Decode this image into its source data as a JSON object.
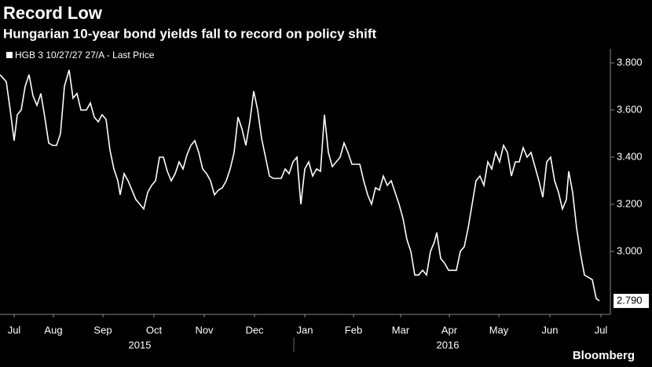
{
  "chart_data": {
    "type": "line",
    "title": "Record Low",
    "subtitle": "Hungarian 10-year bond yields fall to record on policy shift",
    "source": "Bloomberg",
    "legend": "top-left",
    "grid": false,
    "xlim": [
      0,
      777
    ],
    "xticks": [
      {
        "value": 18,
        "label": "Jul"
      },
      {
        "value": 68,
        "label": "Aug"
      },
      {
        "value": 131,
        "label": "Sep"
      },
      {
        "value": 196,
        "label": "Oct"
      },
      {
        "value": 260,
        "label": "Nov"
      },
      {
        "value": 324,
        "label": "Dec"
      },
      {
        "value": 388,
        "label": "Jan"
      },
      {
        "value": 450,
        "label": "Feb"
      },
      {
        "value": 510,
        "label": "Mar"
      },
      {
        "value": 572,
        "label": "Apr"
      },
      {
        "value": 635,
        "label": "May"
      },
      {
        "value": 700,
        "label": "Jun"
      },
      {
        "value": 765,
        "label": "Jul"
      }
    ],
    "years": [
      {
        "value": 178,
        "label": "2015"
      },
      {
        "value": 570,
        "label": "2016"
      }
    ],
    "ylim": [
      2.733,
      3.86
    ],
    "yticks": [
      {
        "value": 3.0,
        "label": "3.000"
      },
      {
        "value": 3.2,
        "label": "3.200"
      },
      {
        "value": 3.4,
        "label": "3.400"
      },
      {
        "value": 3.6,
        "label": "3.600"
      },
      {
        "value": 3.8,
        "label": "3.800"
      }
    ],
    "last_value": {
      "value": 2.79,
      "label": "2.790"
    },
    "x": [
      0,
      8,
      13,
      18,
      22,
      27,
      32,
      37,
      42,
      47,
      52,
      57,
      62,
      67,
      72,
      77,
      82,
      88,
      93,
      98,
      103,
      110,
      115,
      120,
      125,
      130,
      135,
      140,
      145,
      150,
      153,
      158,
      163,
      168,
      173,
      178,
      183,
      188,
      193,
      198,
      203,
      208,
      213,
      218,
      223,
      228,
      233,
      238,
      243,
      248,
      253,
      258,
      263,
      268,
      273,
      278,
      283,
      288,
      293,
      298,
      303,
      308,
      313,
      318,
      323,
      328,
      333,
      338,
      343,
      348,
      353,
      358,
      363,
      368,
      373,
      378,
      383,
      388,
      393,
      398,
      403,
      408,
      413,
      418,
      423,
      428,
      433,
      438,
      443,
      448,
      453,
      458,
      463,
      468,
      473,
      478,
      483,
      488,
      493,
      498,
      503,
      508,
      513,
      518,
      523,
      528,
      533,
      538,
      543,
      548,
      553,
      556,
      561,
      566,
      571,
      576,
      581,
      586,
      591,
      596,
      601,
      606,
      611,
      616,
      621,
      626,
      631,
      636,
      641,
      646,
      651,
      656,
      661,
      666,
      671,
      676,
      681,
      686,
      691,
      696,
      701,
      706,
      711,
      716,
      721,
      724,
      729,
      734,
      739,
      744,
      749,
      754,
      759,
      763
    ],
    "series": [
      {
        "name": "HGB 3 10/27/27 27/A - Last Price",
        "color": "#ffffff",
        "values": [
          3.75,
          3.72,
          3.6,
          3.47,
          3.58,
          3.6,
          3.7,
          3.75,
          3.66,
          3.62,
          3.67,
          3.57,
          3.46,
          3.45,
          3.45,
          3.5,
          3.7,
          3.77,
          3.65,
          3.67,
          3.6,
          3.6,
          3.63,
          3.57,
          3.55,
          3.58,
          3.56,
          3.43,
          3.35,
          3.3,
          3.24,
          3.33,
          3.3,
          3.26,
          3.22,
          3.2,
          3.18,
          3.25,
          3.28,
          3.3,
          3.4,
          3.4,
          3.34,
          3.3,
          3.33,
          3.38,
          3.35,
          3.41,
          3.45,
          3.47,
          3.42,
          3.35,
          3.33,
          3.3,
          3.24,
          3.26,
          3.27,
          3.3,
          3.35,
          3.42,
          3.57,
          3.52,
          3.45,
          3.55,
          3.68,
          3.6,
          3.48,
          3.4,
          3.32,
          3.31,
          3.31,
          3.31,
          3.35,
          3.33,
          3.38,
          3.4,
          3.2,
          3.35,
          3.38,
          3.32,
          3.35,
          3.34,
          3.58,
          3.42,
          3.36,
          3.38,
          3.4,
          3.46,
          3.42,
          3.37,
          3.37,
          3.37,
          3.3,
          3.24,
          3.2,
          3.27,
          3.26,
          3.32,
          3.28,
          3.3,
          3.25,
          3.2,
          3.14,
          3.05,
          3.0,
          2.9,
          2.9,
          2.92,
          2.9,
          3.0,
          3.04,
          3.08,
          2.97,
          2.95,
          2.92,
          2.92,
          2.92,
          3.0,
          3.02,
          3.1,
          3.2,
          3.3,
          3.32,
          3.28,
          3.38,
          3.35,
          3.42,
          3.38,
          3.45,
          3.42,
          3.32,
          3.38,
          3.38,
          3.44,
          3.4,
          3.42,
          3.36,
          3.3,
          3.23,
          3.38,
          3.4,
          3.3,
          3.25,
          3.18,
          3.22,
          3.34,
          3.25,
          3.1,
          2.99,
          2.9,
          2.89,
          2.88,
          2.8,
          2.79
        ]
      }
    ]
  }
}
